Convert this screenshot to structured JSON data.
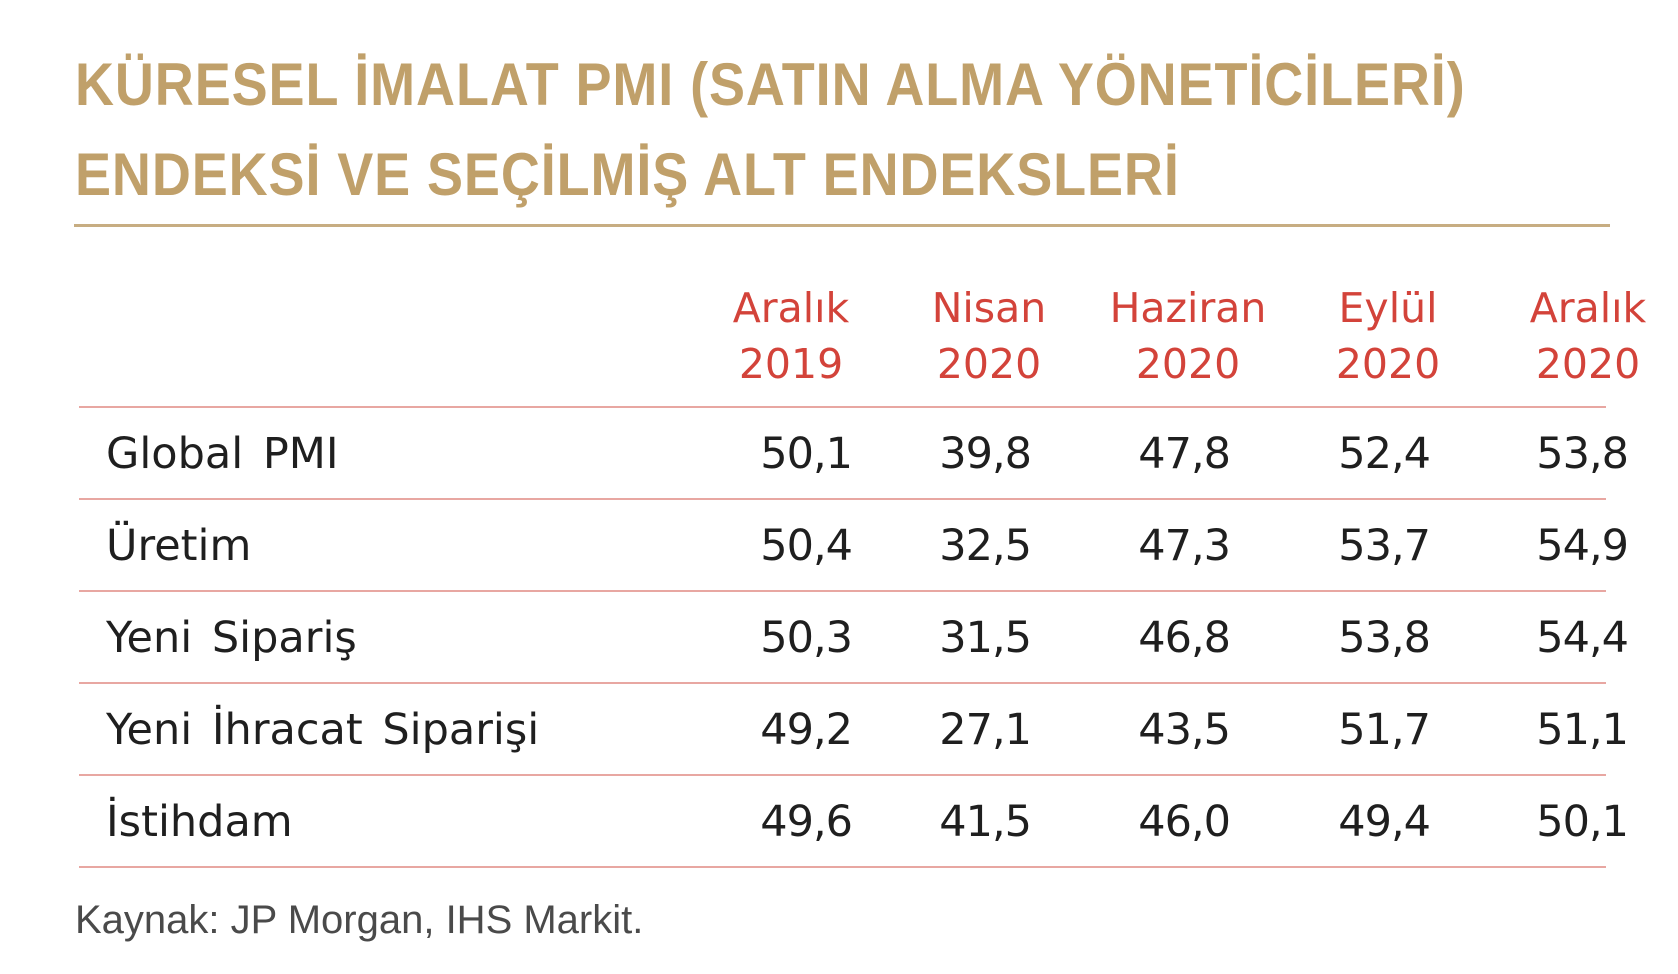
{
  "title": {
    "line1": "KÜRESEL İMALAT PMI (SATIN ALMA YÖNETİCİLERİ)",
    "line2": "ENDEKSİ VE SEÇİLMİŞ ALT ENDEKSLERİ"
  },
  "columns": [
    {
      "month": "Aralık",
      "year": "2019"
    },
    {
      "month": "Nisan",
      "year": "2020"
    },
    {
      "month": "Haziran",
      "year": "2020"
    },
    {
      "month": "Eylül",
      "year": "2020"
    },
    {
      "month": "Aralık",
      "year": "2020"
    }
  ],
  "rows": [
    {
      "label": "Global PMI",
      "values": [
        "50,1",
        "39,8",
        "47,8",
        "52,4",
        "53,8"
      ]
    },
    {
      "label": "Üretim",
      "values": [
        "50,4",
        "32,5",
        "47,3",
        "53,7",
        "54,9"
      ]
    },
    {
      "label": "Yeni Sipariş",
      "values": [
        "50,3",
        "31,5",
        "46,8",
        "53,8",
        "54,4"
      ]
    },
    {
      "label": "Yeni İhracat Siparişi",
      "values": [
        "49,2",
        "27,1",
        "43,5",
        "51,7",
        "51,1"
      ]
    },
    {
      "label": "İstihdam",
      "values": [
        "49,6",
        "41,5",
        "46,0",
        "49,4",
        "50,1"
      ]
    }
  ],
  "source": "Kaynak: JP Morgan, IHS Markit.",
  "colors": {
    "title": "#c0a06a",
    "header": "#d3433a",
    "rule": "#e8a7a2",
    "text": "#1f1f1f"
  }
}
